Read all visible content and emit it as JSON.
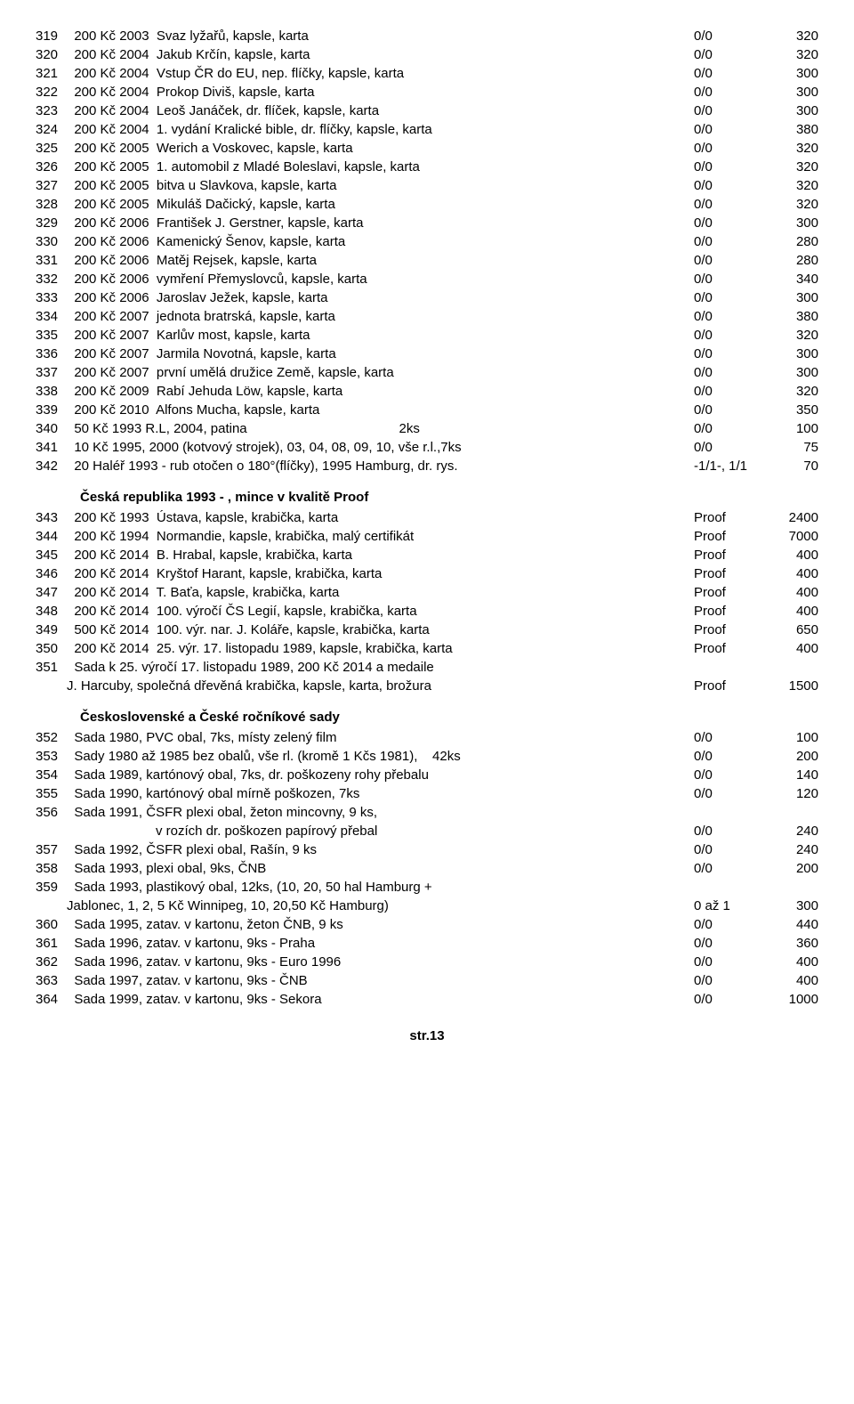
{
  "section1": [
    {
      "n": "319",
      "d": "  200 Kč 2003  Svaz lyžařů, kapsle, karta",
      "q": "0/0",
      "p": "320"
    },
    {
      "n": "320",
      "d": "  200 Kč 2004  Jakub Krčín, kapsle, karta",
      "q": "0/0",
      "p": "320"
    },
    {
      "n": "321",
      "d": "  200 Kč 2004  Vstup ČR do EU, nep. flíčky, kapsle, karta",
      "q": "0/0",
      "p": "300"
    },
    {
      "n": "322",
      "d": "  200 Kč 2004  Prokop Diviš, kapsle, karta",
      "q": "0/0",
      "p": "300"
    },
    {
      "n": "323",
      "d": "  200 Kč 2004  Leoš Janáček, dr. flíček, kapsle, karta",
      "q": "0/0",
      "p": "300"
    },
    {
      "n": "324",
      "d": "  200 Kč 2004  1. vydání Kralické bible, dr. flíčky, kapsle, karta",
      "q": "0/0",
      "p": "380"
    },
    {
      "n": "325",
      "d": "  200 Kč 2005  Werich a Voskovec, kapsle, karta",
      "q": "0/0",
      "p": "320"
    },
    {
      "n": "326",
      "d": "  200 Kč 2005  1. automobil z Mladé Boleslavi, kapsle, karta",
      "q": "0/0",
      "p": "320"
    },
    {
      "n": "327",
      "d": "  200 Kč 2005  bitva u Slavkova, kapsle, karta",
      "q": "0/0",
      "p": "320"
    },
    {
      "n": "328",
      "d": "  200 Kč 2005  Mikuláš Dačický, kapsle, karta",
      "q": "0/0",
      "p": "320"
    },
    {
      "n": "329",
      "d": "  200 Kč 2006  František J. Gerstner, kapsle, karta",
      "q": "0/0",
      "p": "300"
    },
    {
      "n": "330",
      "d": "  200 Kč 2006  Kamenický Šenov, kapsle, karta",
      "q": "0/0",
      "p": "280"
    },
    {
      "n": "331",
      "d": "  200 Kč 2006  Matěj Rejsek, kapsle, karta",
      "q": "0/0",
      "p": "280"
    },
    {
      "n": "332",
      "d": "  200 Kč 2006  vymření Přemyslovců, kapsle, karta",
      "q": "0/0",
      "p": "340"
    },
    {
      "n": "333",
      "d": "  200 Kč 2006  Jaroslav Ježek, kapsle, karta",
      "q": "0/0",
      "p": "300"
    },
    {
      "n": "334",
      "d": "  200 Kč 2007  jednota bratrská, kapsle, karta",
      "q": "0/0",
      "p": "380"
    },
    {
      "n": "335",
      "d": "  200 Kč 2007  Karlův most, kapsle, karta",
      "q": "0/0",
      "p": "320"
    },
    {
      "n": "336",
      "d": "  200 Kč 2007  Jarmila Novotná, kapsle, karta",
      "q": "0/0",
      "p": "300"
    },
    {
      "n": "337",
      "d": "  200 Kč 2007  první umělá družice Země, kapsle, karta",
      "q": "0/0",
      "p": "300"
    },
    {
      "n": "338",
      "d": "  200 Kč 2009  Rabí Jehuda Löw, kapsle, karta",
      "q": "0/0",
      "p": "320"
    },
    {
      "n": "339",
      "d": "  200 Kč 2010  Alfons Mucha, kapsle, karta",
      "q": "0/0",
      "p": "350"
    },
    {
      "n": "340",
      "d": "  50 Kč 1993 R.L, 2004, patina                                         2ks",
      "q": "0/0",
      "p": "100"
    },
    {
      "n": "341",
      "d": "  10 Kč 1995, 2000 (kotvový strojek), 03, 04, 08, 09, 10, vše r.l.,7ks",
      "q": "0/0",
      "p": "75"
    },
    {
      "n": "342",
      "d": "  20 Haléř 1993 - rub otočen o 180°(flíčky), 1995 Hamburg, dr. rys.",
      "q": "-1/1-, 1/1",
      "p": "70"
    }
  ],
  "heading2": "Česká republika 1993 - , mince v kvalitě Proof",
  "section2": [
    {
      "n": "343",
      "d": "  200 Kč 1993  Ústava, kapsle, krabička, karta",
      "q": "Proof",
      "p": "2400"
    },
    {
      "n": "344",
      "d": "  200 Kč 1994  Normandie, kapsle, krabička, malý certifikát",
      "q": "Proof",
      "p": "7000"
    },
    {
      "n": "345",
      "d": "  200 Kč 2014  B. Hrabal, kapsle, krabička, karta",
      "q": "Proof",
      "p": "400"
    },
    {
      "n": "346",
      "d": "  200 Kč 2014  Kryštof Harant, kapsle, krabička, karta",
      "q": "Proof",
      "p": "400"
    },
    {
      "n": "347",
      "d": "  200 Kč 2014  T. Baťa, kapsle, krabička, karta",
      "q": "Proof",
      "p": "400"
    },
    {
      "n": "348",
      "d": "  200 Kč 2014  100. výročí ČS Legií, kapsle, krabička, karta",
      "q": "Proof",
      "p": "400"
    },
    {
      "n": "349",
      "d": "  500 Kč 2014  100. výr. nar. J. Koláře, kapsle, krabička, karta",
      "q": "Proof",
      "p": "650"
    },
    {
      "n": "350",
      "d": "  200 Kč 2014  25. výr. 17. listopadu 1989, kapsle, krabička, karta",
      "q": "Proof",
      "p": "400"
    },
    {
      "n": "351",
      "d": "  Sada k 25. výročí 17. listopadu 1989, 200 Kč 2014 a medaile",
      "q": "",
      "p": ""
    }
  ],
  "section2_cont": {
    "d": "J. Harcuby, společná dřevěná krabička, kapsle, karta, brožura",
    "q": "Proof",
    "p": "1500"
  },
  "heading3": "Československé a České ročníkové sady",
  "section3": [
    {
      "n": "352",
      "d": "  Sada 1980, PVC obal, 7ks, místy zelený film",
      "q": "0/0",
      "p": "100"
    },
    {
      "n": "353",
      "d": "  Sady 1980 až 1985 bez obalů, vše rl. (kromě 1 Kčs 1981),    42ks",
      "q": "0/0",
      "p": "200"
    },
    {
      "n": "354",
      "d": "  Sada 1989, kartónový obal, 7ks, dr. poškozeny rohy přebalu",
      "q": "0/0",
      "p": "140"
    },
    {
      "n": "355",
      "d": "  Sada 1990, kartónový obal mírně poškozen, 7ks",
      "q": "0/0",
      "p": "120"
    },
    {
      "n": "356",
      "d": "  Sada 1991, ČSFR plexi obal, žeton mincovny, 9 ks,",
      "q": "",
      "p": ""
    }
  ],
  "section3_cont1": {
    "d": "v rozích dr. poškozen papírový přebal",
    "q": "0/0",
    "p": "240"
  },
  "section3b": [
    {
      "n": "357",
      "d": "  Sada 1992, ČSFR plexi obal, Rašín, 9 ks",
      "q": "0/0",
      "p": "240"
    },
    {
      "n": "358",
      "d": "  Sada 1993, plexi obal, 9ks, ČNB",
      "q": "0/0",
      "p": "200"
    },
    {
      "n": "359",
      "d": "  Sada 1993, plastikový obal, 12ks, (10, 20, 50 hal Hamburg +",
      "q": "",
      "p": ""
    }
  ],
  "section3_cont2": {
    "d": "Jablonec, 1, 2, 5 Kč Winnipeg, 10, 20,50 Kč Hamburg)",
    "q": "0 až 1",
    "p": "300"
  },
  "section3c": [
    {
      "n": "360",
      "d": "  Sada 1995, zatav. v kartonu, žeton ČNB, 9 ks",
      "q": "0/0",
      "p": "440"
    },
    {
      "n": "361",
      "d": "  Sada 1996, zatav. v kartonu, 9ks - Praha",
      "q": "0/0",
      "p": "360"
    },
    {
      "n": "362",
      "d": "  Sada 1996, zatav. v kartonu, 9ks - Euro 1996",
      "q": "0/0",
      "p": "400"
    },
    {
      "n": "363",
      "d": "  Sada 1997, zatav. v kartonu, 9ks - ČNB",
      "q": "0/0",
      "p": "400"
    },
    {
      "n": "364",
      "d": "  Sada 1999, zatav. v kartonu, 9ks - Sekora",
      "q": "0/0",
      "p": "1000"
    }
  ],
  "footer": "str.13"
}
